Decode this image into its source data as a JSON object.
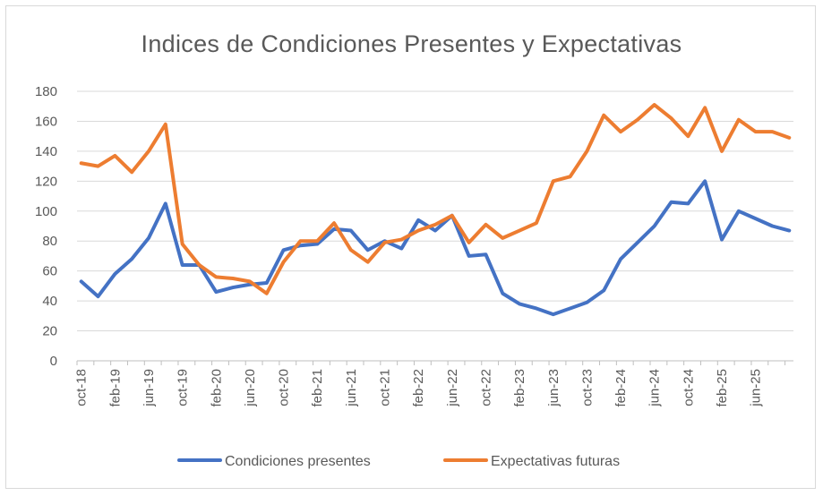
{
  "chart_data": {
    "type": "line",
    "title": "Indices de Condiciones Presentes y Expectativas",
    "xlabel": "",
    "ylabel": "",
    "ylim": [
      0,
      180
    ],
    "yticks": [
      0,
      20,
      40,
      60,
      80,
      100,
      120,
      140,
      160,
      180
    ],
    "x_tick_labels": [
      "oct-18",
      "feb-19",
      "jun-19",
      "oct-19",
      "feb-20",
      "jun-20",
      "oct-20",
      "feb-21",
      "jun-21",
      "oct-21",
      "feb-22",
      "jun-22",
      "oct-22",
      "feb-23",
      "jun-23",
      "oct-23",
      "feb-24",
      "jun-24",
      "oct-24",
      "feb-25",
      "jun-25"
    ],
    "x_tick_step": 2,
    "legend_position": "bottom",
    "grid": true,
    "series": [
      {
        "name": "Condiciones presentes",
        "color": "#4472c4",
        "values": [
          53,
          43,
          58,
          68,
          82,
          105,
          64,
          64,
          46,
          49,
          51,
          52,
          74,
          77,
          78,
          88,
          87,
          74,
          80,
          75,
          94,
          87,
          97,
          70,
          71,
          45,
          38,
          35,
          31,
          35,
          39,
          47,
          68,
          79,
          90,
          106,
          105,
          120,
          81,
          100,
          95,
          90,
          87
        ]
      },
      {
        "name": "Expectativas futuras",
        "color": "#ed7d31",
        "values": [
          132,
          130,
          137,
          126,
          140,
          158,
          78,
          64,
          56,
          55,
          53,
          45,
          66,
          80,
          80,
          92,
          74,
          66,
          79,
          81,
          87,
          91,
          97,
          79,
          91,
          82,
          87,
          92,
          120,
          123,
          140,
          164,
          153,
          161,
          171,
          162,
          150,
          169,
          140,
          161,
          153,
          153,
          149
        ]
      }
    ]
  }
}
